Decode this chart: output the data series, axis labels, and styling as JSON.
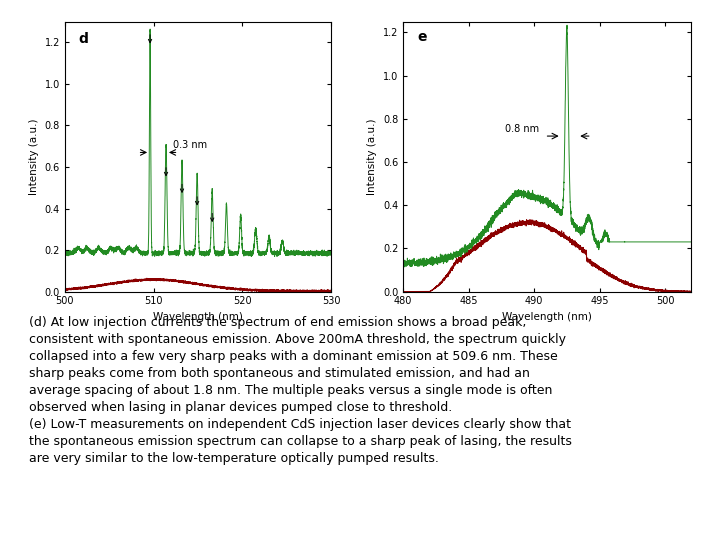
{
  "fig_width": 7.2,
  "fig_height": 5.4,
  "dpi": 100,
  "background_color": "#ffffff",
  "plot_d": {
    "label": "d",
    "xlim": [
      500,
      530
    ],
    "ylim": [
      0,
      1.3
    ],
    "yticks": [
      0,
      0.2,
      0.4,
      0.6,
      0.8,
      1.0,
      1.2
    ],
    "xticks": [
      500,
      510,
      520,
      530
    ],
    "xlabel": "Wavelength (nm)",
    "ylabel": "Intensity (a.u.)",
    "annotation": "0.3 nm",
    "green_color": "#228B22",
    "red_color": "#8B0000"
  },
  "plot_e": {
    "label": "e",
    "xlim": [
      480,
      502
    ],
    "ylim": [
      0,
      1.25
    ],
    "yticks": [
      0,
      0.2,
      0.4,
      0.6,
      0.8,
      1.0,
      1.2
    ],
    "xticks": [
      480,
      485,
      490,
      495,
      500
    ],
    "xlabel": "Wavelength (nm)",
    "ylabel": "Intensity (a.u.)",
    "annotation": "0.8 nm",
    "green_color": "#228B22",
    "red_color": "#8B0000"
  },
  "caption": "(d) At low injection currents the spectrum of end emission shows a broad peak,\nconsistent with spontaneous emission. Above 200mA threshold, the spectrum quickly\ncollapsed into a few very sharp peaks with a dominant emission at 509.6 nm. These\nsharp peaks come from both spontaneous and stimulated emission, and had an\naverage spacing of about 1.8 nm. The multiple peaks versus a single mode is often\nobserved when lasing in planar devices pumped close to threshold.\n(e) Low-T measurements on independent CdS injection laser devices clearly show that\nthe spontaneous emission spectrum can collapse to a sharp peak of lasing, the results\nare very similar to the low-temperature optically pumped results.",
  "caption_fontsize": 9.0
}
